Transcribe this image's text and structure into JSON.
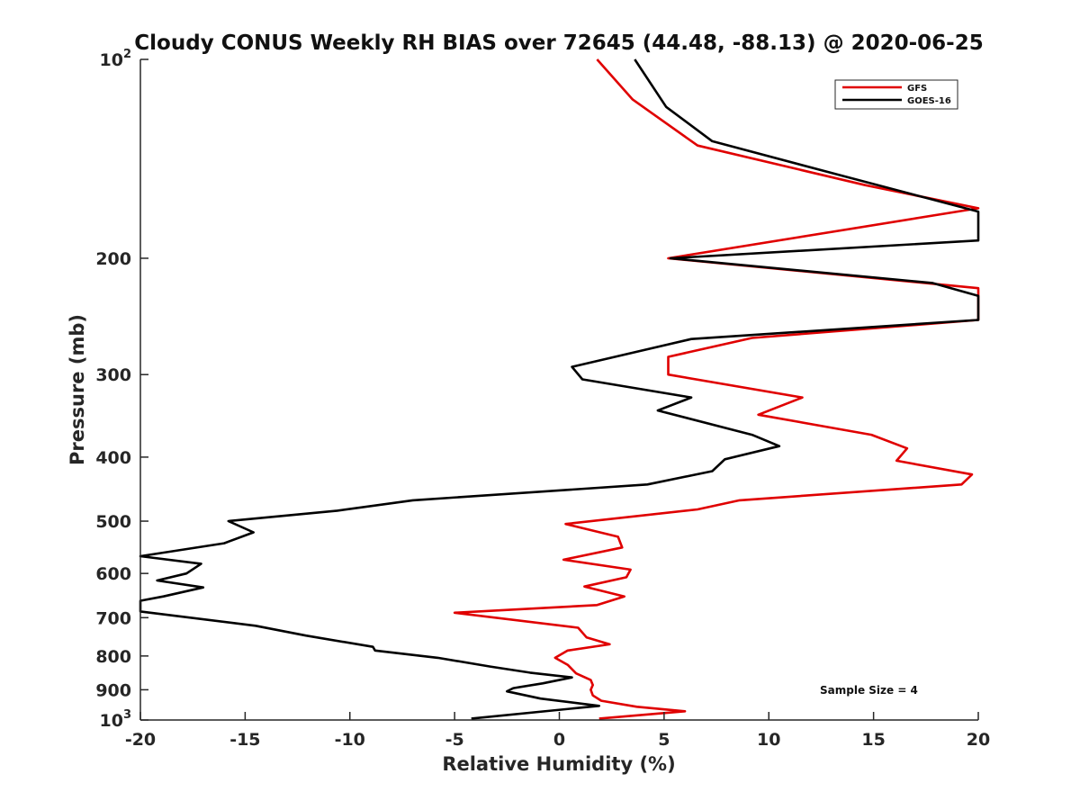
{
  "chart_data": {
    "type": "line",
    "title": "Cloudy CONUS Weekly RH BIAS over 72645 (44.48, -88.13) @ 2020-06-25",
    "xlabel": "Relative Humidity (%)",
    "ylabel": "Pressure (mb)",
    "xlim": [
      -20,
      20
    ],
    "ylim": [
      100,
      1000
    ],
    "y_scale": "log",
    "y_reversed": true,
    "grid": false,
    "legend_position": "top-right",
    "xticks": [
      "-20",
      "-15",
      "-10",
      "-5",
      "0",
      "5",
      "10",
      "15",
      "20"
    ],
    "xtick_values": [
      -20,
      -15,
      -10,
      -5,
      0,
      5,
      10,
      15,
      20
    ],
    "yticks": [
      {
        "value": 100,
        "base": "10",
        "exp": "2"
      },
      {
        "value": 200,
        "label": "200"
      },
      {
        "value": 300,
        "label": "300"
      },
      {
        "value": 400,
        "label": "400"
      },
      {
        "value": 500,
        "label": "500"
      },
      {
        "value": 600,
        "label": "600"
      },
      {
        "value": 700,
        "label": "700"
      },
      {
        "value": 800,
        "label": "800"
      },
      {
        "value": 900,
        "label": "900"
      },
      {
        "value": 1000,
        "base": "10",
        "exp": "3"
      }
    ],
    "annotation": "Sample Size = 4",
    "series": [
      {
        "name": "GFS",
        "color": "#e00000",
        "points": [
          [
            1.8,
            100
          ],
          [
            3.5,
            115
          ],
          [
            6.6,
            135
          ],
          [
            14.6,
            155
          ],
          [
            20.5,
            168
          ],
          [
            5.2,
            200
          ],
          [
            20.5,
            222
          ],
          [
            20.5,
            248
          ],
          [
            9.2,
            264
          ],
          [
            5.2,
            282
          ],
          [
            5.2,
            300
          ],
          [
            11.6,
            325
          ],
          [
            9.5,
            345
          ],
          [
            14.9,
            370
          ],
          [
            16.6,
            388
          ],
          [
            16.1,
            405
          ],
          [
            19.7,
            425
          ],
          [
            19.2,
            440
          ],
          [
            8.6,
            465
          ],
          [
            6.6,
            480
          ],
          [
            0.3,
            505
          ],
          [
            2.8,
            528
          ],
          [
            3.0,
            548
          ],
          [
            0.2,
            572
          ],
          [
            3.4,
            592
          ],
          [
            3.2,
            608
          ],
          [
            1.2,
            628
          ],
          [
            3.1,
            650
          ],
          [
            1.8,
            670
          ],
          [
            -5.0,
            688
          ],
          [
            0.9,
            725
          ],
          [
            1.3,
            750
          ],
          [
            2.4,
            768
          ],
          [
            0.4,
            785
          ],
          [
            -0.2,
            805
          ],
          [
            0.4,
            825
          ],
          [
            0.8,
            850
          ],
          [
            1.5,
            870
          ],
          [
            1.6,
            885
          ],
          [
            1.5,
            900
          ],
          [
            1.6,
            918
          ],
          [
            2.0,
            935
          ],
          [
            3.7,
            955
          ],
          [
            6.0,
            970
          ],
          [
            1.9,
            995
          ]
        ]
      },
      {
        "name": "GOES-16",
        "color": "#000000",
        "points": [
          [
            3.6,
            100
          ],
          [
            5.1,
            118
          ],
          [
            7.3,
            133
          ],
          [
            13.5,
            150
          ],
          [
            20.5,
            170
          ],
          [
            20.5,
            188
          ],
          [
            5.3,
            200
          ],
          [
            17.8,
            218
          ],
          [
            20.5,
            228
          ],
          [
            20.5,
            248
          ],
          [
            6.3,
            265
          ],
          [
            0.6,
            292
          ],
          [
            1.1,
            305
          ],
          [
            6.3,
            325
          ],
          [
            4.7,
            340
          ],
          [
            9.2,
            370
          ],
          [
            10.5,
            385
          ],
          [
            7.9,
            403
          ],
          [
            7.3,
            420
          ],
          [
            4.2,
            440
          ],
          [
            -7.0,
            465
          ],
          [
            -10.6,
            482
          ],
          [
            -15.8,
            500
          ],
          [
            -14.6,
            520
          ],
          [
            -16.0,
            540
          ],
          [
            -20.0,
            565
          ],
          [
            -17.1,
            580
          ],
          [
            -17.8,
            600
          ],
          [
            -19.2,
            615
          ],
          [
            -17.0,
            630
          ],
          [
            -18.9,
            650
          ],
          [
            -20.0,
            660
          ],
          [
            -20.0,
            685
          ],
          [
            -14.5,
            720
          ],
          [
            -12.1,
            745
          ],
          [
            -8.9,
            775
          ],
          [
            -8.8,
            785
          ],
          [
            -5.8,
            805
          ],
          [
            -3.3,
            830
          ],
          [
            -1.4,
            848
          ],
          [
            0.6,
            862
          ],
          [
            -0.8,
            880
          ],
          [
            -2.2,
            895
          ],
          [
            -2.5,
            905
          ],
          [
            -0.9,
            928
          ],
          [
            1.9,
            952
          ],
          [
            -4.2,
            995
          ]
        ]
      }
    ]
  }
}
